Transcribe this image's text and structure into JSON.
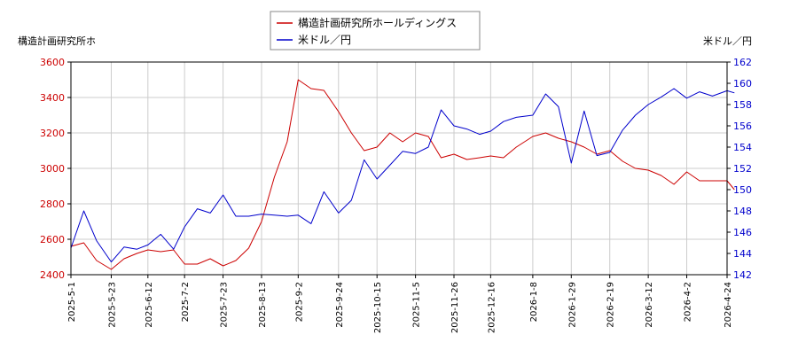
{
  "chart_data": {
    "type": "line",
    "title": "",
    "y_left_label": "構造計画研究所ホ",
    "y_right_label": "米ドル／円",
    "x_tick_labels": [
      "2025-5-1",
      "2025-5-23",
      "2025-6-12",
      "2025-7-2",
      "2025-7-23",
      "2025-8-13",
      "2025-9-2",
      "2025-9-24",
      "2025-10-15",
      "2025-11-5",
      "2025-11-26",
      "2025-12-16",
      "2026-1-8",
      "2026-1-29",
      "2026-2-19",
      "2026-3-12",
      "2026-4-2",
      "2026-4-24"
    ],
    "y_left_ticks": [
      2400,
      2600,
      2800,
      3000,
      3200,
      3400,
      3600
    ],
    "y_right_ticks": [
      142,
      144,
      146,
      148,
      150,
      152,
      154,
      156,
      158,
      160,
      162
    ],
    "y_left_range": [
      2400,
      3600
    ],
    "y_right_range": [
      142,
      162
    ],
    "grid": true,
    "legend_position": "top-center",
    "colors": {
      "stock": "#cc0000",
      "fx": "#0000cc",
      "left_axis": "#cc0000",
      "right_axis": "#0000cc",
      "grid": "#cccccc"
    },
    "series": [
      {
        "name": "構造計画研究所ホールディングス",
        "axis": "left",
        "x": [
          "2025-5-1",
          "2025-5-8",
          "2025-5-15",
          "2025-5-23",
          "2025-5-30",
          "2025-6-6",
          "2025-6-12",
          "2025-6-19",
          "2025-6-26",
          "2025-7-2",
          "2025-7-9",
          "2025-7-16",
          "2025-7-23",
          "2025-7-30",
          "2025-8-6",
          "2025-8-13",
          "2025-8-20",
          "2025-8-27",
          "2025-9-2",
          "2025-9-9",
          "2025-9-16",
          "2025-9-24",
          "2025-10-1",
          "2025-10-8",
          "2025-10-15",
          "2025-10-22",
          "2025-10-29",
          "2025-11-5",
          "2025-11-12",
          "2025-11-19",
          "2025-11-26",
          "2025-12-3",
          "2025-12-10",
          "2025-12-16",
          "2025-12-23",
          "2025-12-30",
          "2026-1-8",
          "2026-1-15",
          "2026-1-22",
          "2026-1-29",
          "2026-2-5",
          "2026-2-12",
          "2026-2-19",
          "2026-2-26",
          "2026-3-5",
          "2026-3-12",
          "2026-3-19",
          "2026-3-26",
          "2026-4-2",
          "2026-4-9",
          "2026-4-16",
          "2026-4-24",
          "2026-4-28"
        ],
        "values": [
          2560,
          2580,
          2480,
          2430,
          2490,
          2520,
          2540,
          2530,
          2540,
          2460,
          2460,
          2490,
          2450,
          2480,
          2550,
          2700,
          2950,
          3150,
          3500,
          3450,
          3440,
          3320,
          3200,
          3100,
          3120,
          3200,
          3150,
          3200,
          3180,
          3060,
          3080,
          3050,
          3060,
          3070,
          3060,
          3120,
          3180,
          3200,
          3170,
          3150,
          3120,
          3080,
          3100,
          3040,
          3000,
          2990,
          2960,
          2910,
          2980,
          2930,
          2930,
          2930,
          2880
        ]
      },
      {
        "name": "米ドル／円",
        "axis": "right",
        "x": [
          "2025-5-1",
          "2025-5-8",
          "2025-5-15",
          "2025-5-23",
          "2025-5-30",
          "2025-6-6",
          "2025-6-12",
          "2025-6-19",
          "2025-6-26",
          "2025-7-2",
          "2025-7-9",
          "2025-7-16",
          "2025-7-23",
          "2025-7-30",
          "2025-8-6",
          "2025-8-13",
          "2025-8-20",
          "2025-8-27",
          "2025-9-2",
          "2025-9-9",
          "2025-9-16",
          "2025-9-24",
          "2025-10-1",
          "2025-10-8",
          "2025-10-15",
          "2025-10-22",
          "2025-10-29",
          "2025-11-5",
          "2025-11-12",
          "2025-11-19",
          "2025-11-26",
          "2025-12-3",
          "2025-12-10",
          "2025-12-16",
          "2025-12-23",
          "2025-12-30",
          "2026-1-8",
          "2026-1-15",
          "2026-1-22",
          "2026-1-29",
          "2026-2-5",
          "2026-2-12",
          "2026-2-19",
          "2026-2-26",
          "2026-3-5",
          "2026-3-12",
          "2026-3-19",
          "2026-3-26",
          "2026-4-2",
          "2026-4-9",
          "2026-4-16",
          "2026-4-24",
          "2026-4-28"
        ],
        "values": [
          144.5,
          148.0,
          145.2,
          143.2,
          144.6,
          144.4,
          144.8,
          145.8,
          144.4,
          146.5,
          148.2,
          147.8,
          149.5,
          147.5,
          147.5,
          147.7,
          147.6,
          147.5,
          147.6,
          146.8,
          149.8,
          147.8,
          149.0,
          152.8,
          151.0,
          152.3,
          153.6,
          153.4,
          154.0,
          157.5,
          156.0,
          155.7,
          155.2,
          155.5,
          156.4,
          156.8,
          157.0,
          159.0,
          157.8,
          152.5,
          157.4,
          153.2,
          153.5,
          155.6,
          157.0,
          158.0,
          158.7,
          159.5,
          158.6,
          159.2,
          158.8,
          159.3,
          159.1
        ]
      }
    ]
  }
}
